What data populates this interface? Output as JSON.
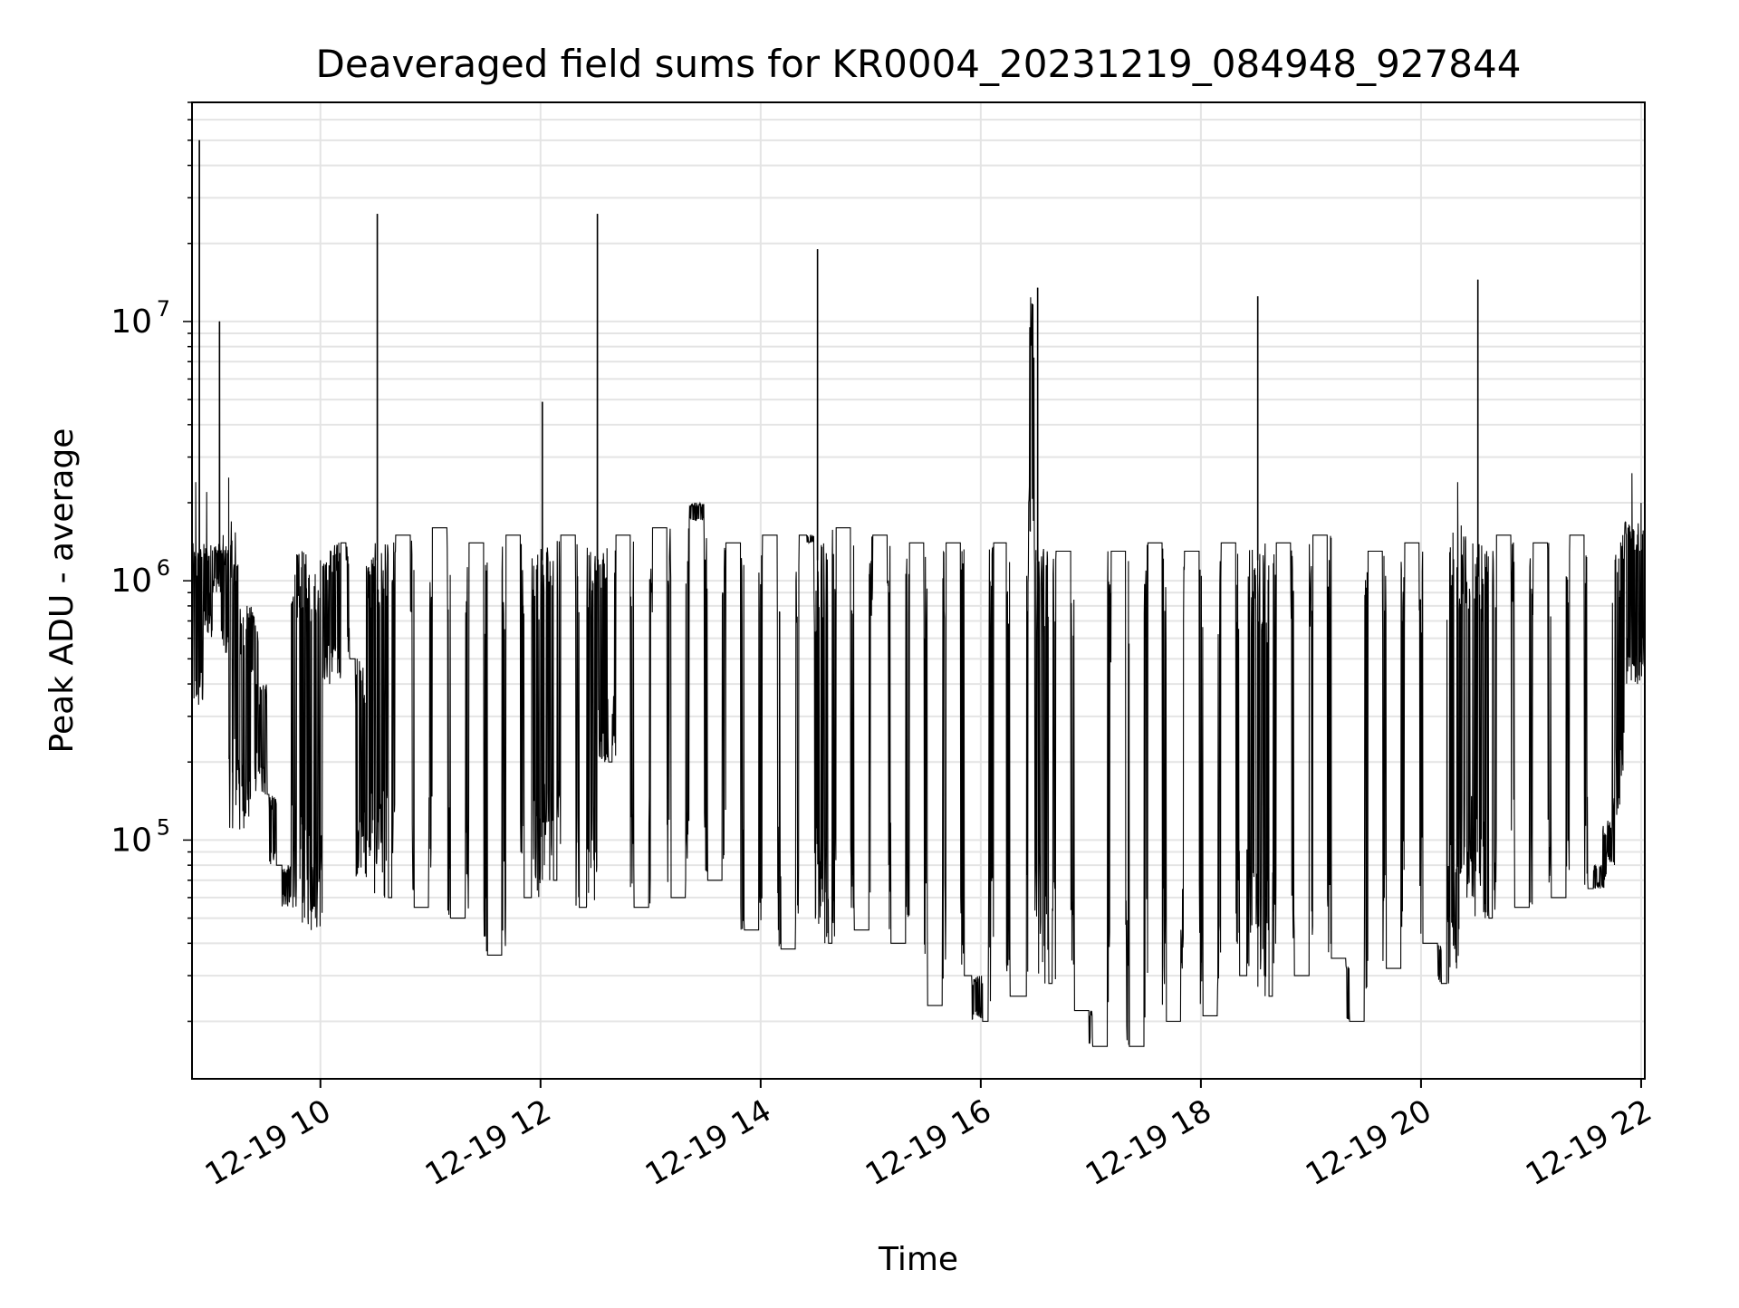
{
  "chart_data": {
    "type": "line",
    "title": "Deaveraged field sums for KR0004_20231219_084948_927844",
    "xlabel": "Time",
    "ylabel": "Peak ADU - average",
    "x_axis_type": "time",
    "x_range": [
      "2023-12-19 08:50",
      "2023-12-19 22:02"
    ],
    "x_tick_labels": [
      "12-19 10",
      "12-19 12",
      "12-19 14",
      "12-19 16",
      "12-19 18",
      "12-19 20",
      "12-19 22"
    ],
    "y_scale": "log",
    "y_range": [
      12000,
      70000000
    ],
    "y_tick_labels": [
      {
        "base": "10",
        "exp": "5",
        "value": 100000
      },
      {
        "base": "10",
        "exp": "6",
        "value": 1000000
      },
      {
        "base": "10",
        "exp": "7",
        "value": 10000000
      }
    ],
    "grid": true,
    "line_color": "#000000",
    "series": [
      {
        "name": "",
        "note_points": "approximate envelope of dense time series (HH:MM, value)",
        "points": [
          [
            "08:50",
            300000
          ],
          [
            "08:52",
            2400000
          ],
          [
            "08:54",
            50000000
          ],
          [
            "08:55",
            600000
          ],
          [
            "08:58",
            2200000
          ],
          [
            "09:00",
            900000
          ],
          [
            "09:05",
            10000000
          ],
          [
            "09:07",
            1500000
          ],
          [
            "09:10",
            2500000
          ],
          [
            "09:12",
            500000
          ],
          [
            "09:16",
            110000
          ],
          [
            "09:20",
            800000
          ],
          [
            "09:25",
            400000
          ],
          [
            "09:30",
            150000
          ],
          [
            "09:38",
            80000
          ],
          [
            "09:45",
            55000
          ],
          [
            "09:50",
            1300000
          ],
          [
            "09:55",
            45000
          ],
          [
            "10:00",
            1200000
          ],
          [
            "10:05",
            400000
          ],
          [
            "10:10",
            1400000
          ],
          [
            "10:20",
            500000
          ],
          [
            "10:25",
            72000
          ],
          [
            "10:31",
            26000000
          ],
          [
            "10:35",
            60000
          ],
          [
            "10:45",
            1500000
          ],
          [
            "10:55",
            55000
          ],
          [
            "11:05",
            1600000
          ],
          [
            "11:15",
            50000
          ],
          [
            "11:25",
            1400000
          ],
          [
            "11:35",
            36000
          ],
          [
            "11:45",
            1500000
          ],
          [
            "11:55",
            60000
          ],
          [
            "12:01",
            4900000
          ],
          [
            "12:05",
            70000
          ],
          [
            "12:15",
            1500000
          ],
          [
            "12:25",
            55000
          ],
          [
            "12:31",
            26000000
          ],
          [
            "12:35",
            200000
          ],
          [
            "12:45",
            1500000
          ],
          [
            "12:55",
            55000
          ],
          [
            "13:05",
            1600000
          ],
          [
            "13:15",
            60000
          ],
          [
            "13:25",
            2000000
          ],
          [
            "13:35",
            70000
          ],
          [
            "13:45",
            1400000
          ],
          [
            "13:55",
            45000
          ],
          [
            "14:05",
            1500000
          ],
          [
            "14:15",
            38000
          ],
          [
            "14:25",
            1500000
          ],
          [
            "14:31",
            19000000
          ],
          [
            "14:35",
            40000
          ],
          [
            "14:45",
            1600000
          ],
          [
            "14:55",
            45000
          ],
          [
            "15:05",
            1500000
          ],
          [
            "15:15",
            40000
          ],
          [
            "15:25",
            1400000
          ],
          [
            "15:35",
            23000
          ],
          [
            "15:45",
            1400000
          ],
          [
            "15:55",
            30000
          ],
          [
            "16:01",
            20000
          ],
          [
            "16:10",
            1400000
          ],
          [
            "16:20",
            25000
          ],
          [
            "16:31",
            13500000
          ],
          [
            "16:35",
            28000
          ],
          [
            "16:45",
            1300000
          ],
          [
            "16:55",
            22000
          ],
          [
            "17:05",
            16000
          ],
          [
            "17:15",
            1300000
          ],
          [
            "17:25",
            16000
          ],
          [
            "17:35",
            1400000
          ],
          [
            "17:45",
            20000
          ],
          [
            "17:55",
            1300000
          ],
          [
            "18:05",
            21000
          ],
          [
            "18:15",
            1400000
          ],
          [
            "18:25",
            30000
          ],
          [
            "18:31",
            12500000
          ],
          [
            "18:35",
            25000
          ],
          [
            "18:45",
            1400000
          ],
          [
            "18:55",
            30000
          ],
          [
            "19:05",
            1500000
          ],
          [
            "19:15",
            35000
          ],
          [
            "19:25",
            20000
          ],
          [
            "19:35",
            1300000
          ],
          [
            "19:45",
            32000
          ],
          [
            "19:55",
            1400000
          ],
          [
            "20:05",
            40000
          ],
          [
            "20:15",
            28000
          ],
          [
            "20:20",
            2400000
          ],
          [
            "20:25",
            60000
          ],
          [
            "20:31",
            14500000
          ],
          [
            "20:35",
            50000
          ],
          [
            "20:45",
            1500000
          ],
          [
            "20:55",
            55000
          ],
          [
            "21:05",
            1400000
          ],
          [
            "21:15",
            60000
          ],
          [
            "21:25",
            1500000
          ],
          [
            "21:35",
            65000
          ],
          [
            "21:40",
            80000
          ],
          [
            "21:45",
            120000
          ],
          [
            "21:50",
            1500000
          ],
          [
            "21:55",
            2600000
          ],
          [
            "21:58",
            400000
          ],
          [
            "22:00",
            2000000
          ],
          [
            "22:02",
            1200000
          ]
        ]
      }
    ]
  }
}
